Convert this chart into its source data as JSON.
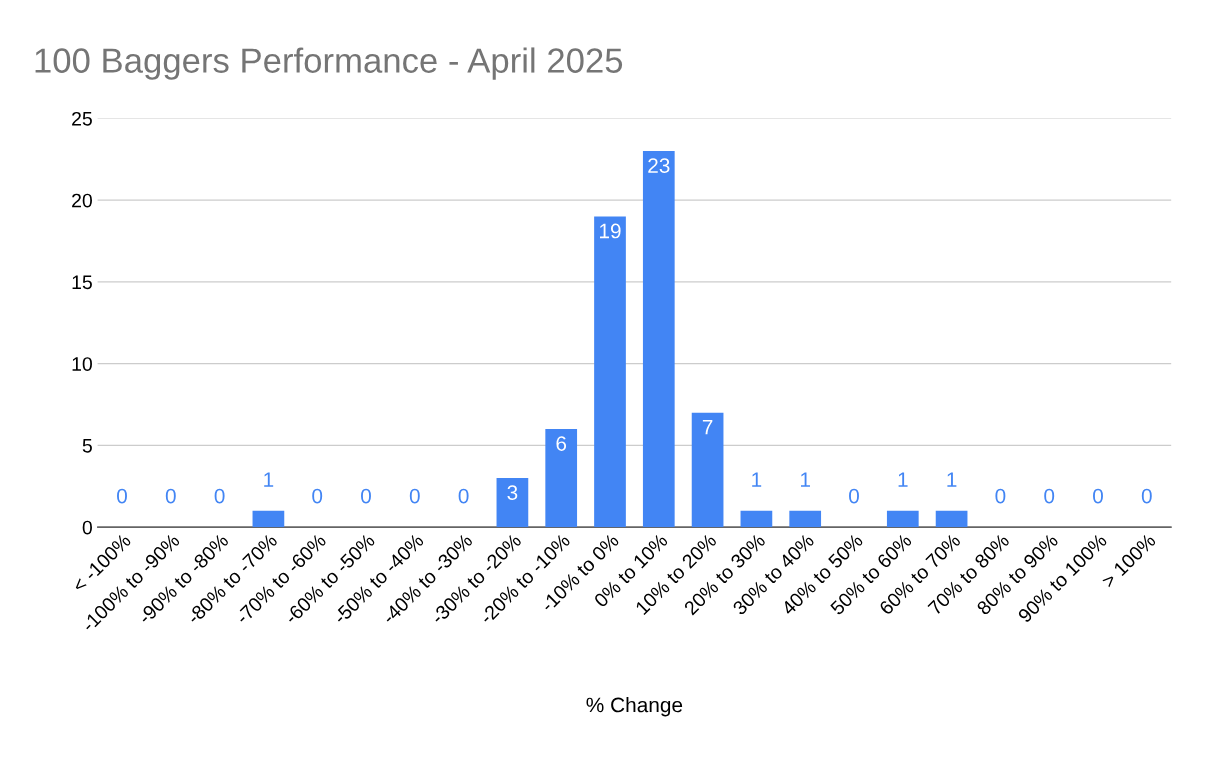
{
  "chart_data": {
    "type": "bar",
    "title": "100 Baggers Performance - April 2025",
    "xlabel": "% Change",
    "categories": [
      "< -100%",
      "-100% to -90%",
      "-90% to -80%",
      "-80% to -70%",
      "-70% to -60%",
      "-60% to -50%",
      "-50% to -40%",
      "-40% to -30%",
      "-30% to -20%",
      "-20% to -10%",
      "-10% to 0%",
      "0% to 10%",
      "10% to 20%",
      "20% to 30%",
      "30% to 40%",
      "40% to 50%",
      "50% to 60%",
      "60% to 70%",
      "70% to 80%",
      "80% to 90%",
      "90% to 100%",
      "> 100%"
    ],
    "values": [
      0,
      0,
      0,
      1,
      0,
      0,
      0,
      0,
      3,
      6,
      19,
      23,
      7,
      1,
      1,
      0,
      1,
      1,
      0,
      0,
      0,
      0
    ],
    "color": "#4285f4",
    "ylim": [
      0,
      25
    ],
    "yticks": [
      0,
      5,
      10,
      15,
      20,
      25
    ],
    "grid": "y",
    "data_labels": true
  }
}
